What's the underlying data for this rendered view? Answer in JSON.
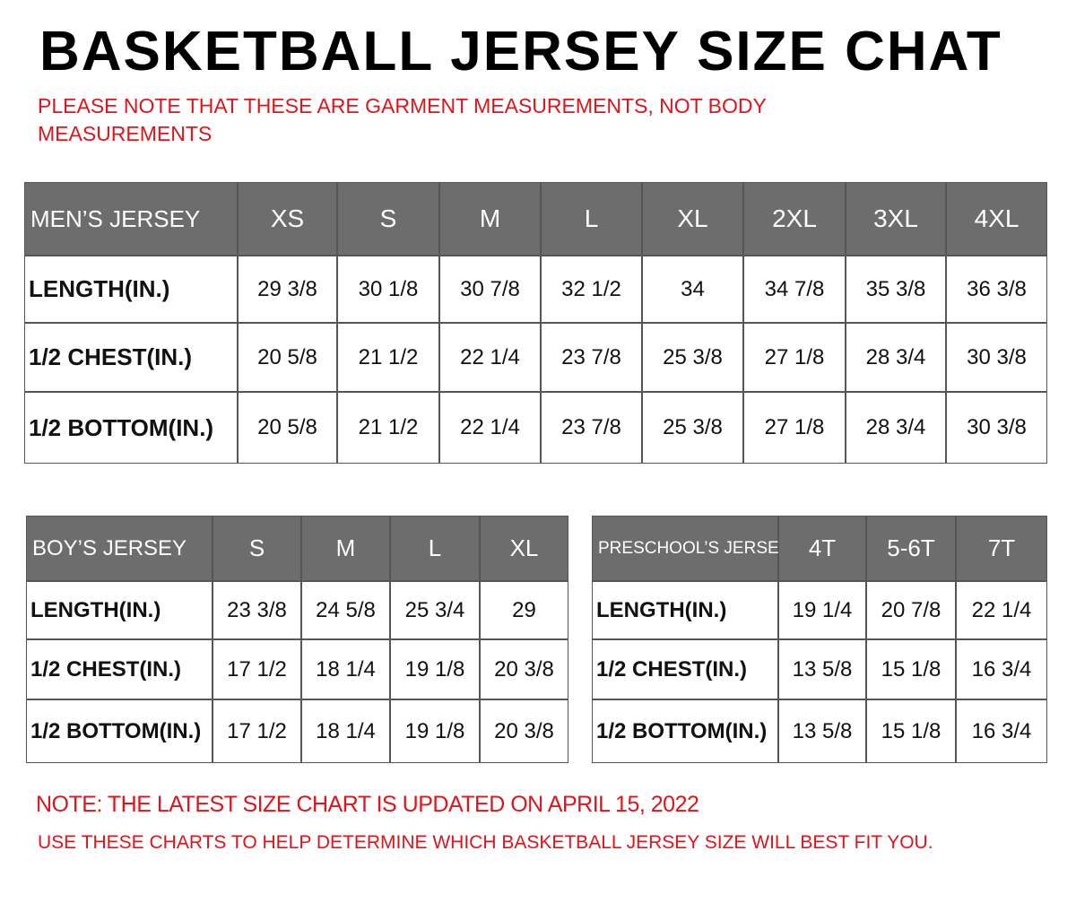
{
  "header": {
    "title": "BASKETBALL JERSEY SIZE CHAT",
    "note": "PLEASE NOTE THAT THESE ARE GARMENT MEASUREMENTS, NOT BODY MEASUREMENTS"
  },
  "tables": [
    {
      "header": [
        "MEN’S JERSEY",
        "XS",
        "S",
        "M",
        "L",
        "XL",
        "2XL",
        "3XL",
        "4XL"
      ],
      "rows": [
        [
          "LENGTH(IN.)",
          "29 3/8",
          "30 1/8",
          "30 7/8",
          "32 1/2",
          "34",
          "34 7/8",
          "35 3/8",
          "36 3/8"
        ],
        [
          "1/2 CHEST(IN.)",
          "20 5/8",
          "21 1/2",
          "22 1/4",
          "23 7/8",
          "25 3/8",
          "27 1/8",
          "28 3/4",
          "30 3/8"
        ],
        [
          "1/2 BOTTOM(IN.)",
          "20 5/8",
          "21 1/2",
          "22 1/4",
          "23 7/8",
          "25 3/8",
          "27 1/8",
          "28 3/4",
          "30 3/8"
        ]
      ]
    },
    {
      "header": [
        "BOY’S JERSEY",
        "S",
        "M",
        "L",
        "XL"
      ],
      "rows": [
        [
          "LENGTH(IN.)",
          "23 3/8",
          "24 5/8",
          "25 3/4",
          "29"
        ],
        [
          "1/2 CHEST(IN.)",
          "17 1/2",
          "18 1/4",
          "19 1/8",
          "20 3/8"
        ],
        [
          "1/2 BOTTOM(IN.)",
          "17 1/2",
          "18 1/4",
          "19 1/8",
          "20 3/8"
        ]
      ]
    },
    {
      "header": [
        "PRESCHOOL’S JERSEY",
        "4T",
        "5-6T",
        "7T"
      ],
      "rows": [
        [
          "LENGTH(IN.)",
          "19 1/4",
          "20 7/8",
          "22 1/4"
        ],
        [
          "1/2 CHEST(IN.)",
          "13 5/8",
          "15 1/8",
          "16 3/4"
        ],
        [
          "1/2 BOTTOM(IN.)",
          "13 5/8",
          "15 1/8",
          "16 3/4"
        ]
      ]
    }
  ],
  "footer": {
    "update_note": "NOTE: THE LATEST SIZE CHART IS UPDATED ON APRIL 15, 2022",
    "fit_note": "USE THESE CHARTS TO HELP DETERMINE WHICH  BASKETBALL JERSEY  SIZE WILL BEST FIT YOU."
  }
}
